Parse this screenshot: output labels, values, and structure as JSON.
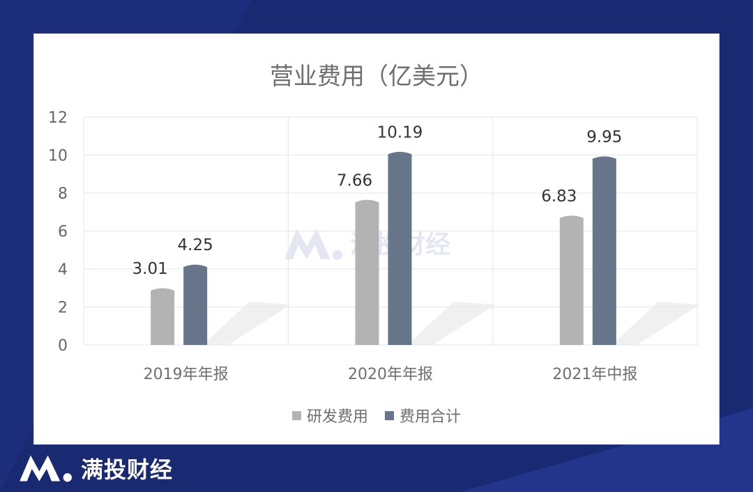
{
  "logo_text": "满投财经",
  "watermark_text": "满投财经",
  "chart_data": {
    "type": "bar",
    "title": "营业费用（亿美元）",
    "categories": [
      "2019年年报",
      "2020年年报",
      "2021年中报"
    ],
    "series": [
      {
        "name": "研发费用",
        "values": [
          3.01,
          7.66,
          6.83
        ],
        "labels": [
          "3.01",
          "7.66",
          "6.83"
        ],
        "color": "#b3b3b3"
      },
      {
        "name": "费用合计",
        "values": [
          4.25,
          10.19,
          9.95
        ],
        "labels": [
          "4.25",
          "10.19",
          "9.95"
        ],
        "color": "#66758a"
      }
    ],
    "ylim": [
      0,
      12
    ],
    "yticks": [
      "0",
      "2",
      "4",
      "6",
      "8",
      "10",
      "12"
    ],
    "grid": true,
    "legend": "bottom"
  }
}
